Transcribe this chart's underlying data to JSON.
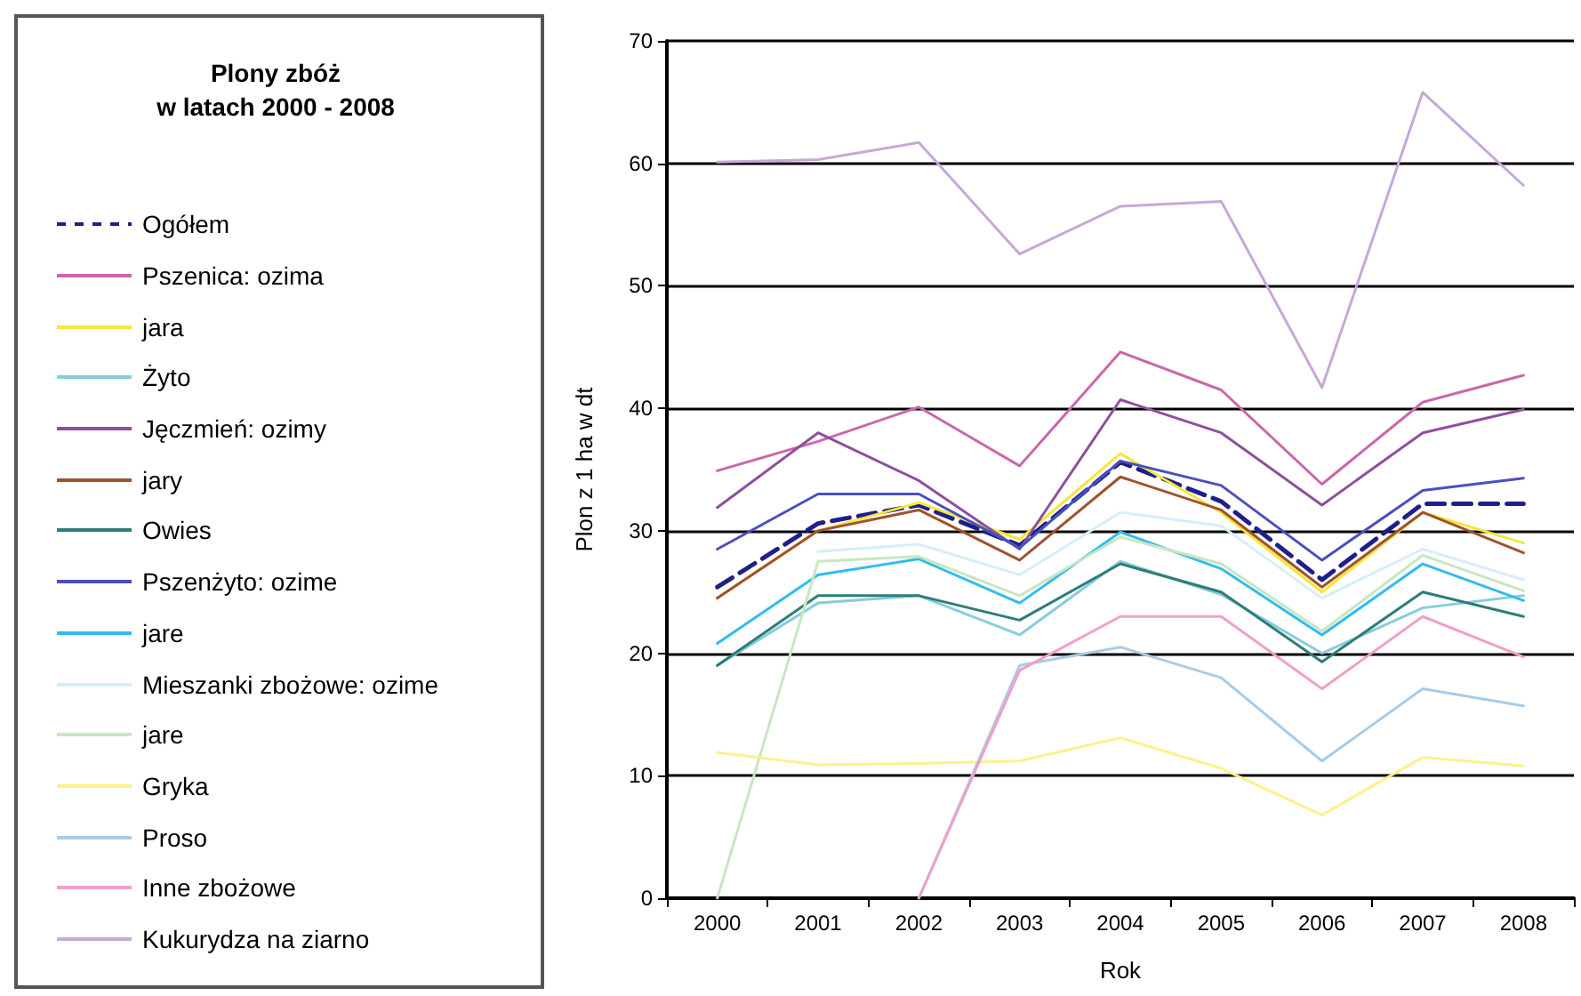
{
  "chart_data": {
    "type": "line",
    "title": "Plony zbóż\nw latach 2000  - 2008",
    "xlabel": "Rok",
    "ylabel": "Plon z 1 ha w dt",
    "categories": [
      "2000",
      "2001",
      "2002",
      "2003",
      "2004",
      "2005",
      "2006",
      "2007",
      "2008"
    ],
    "ylim": [
      0,
      70
    ],
    "yticks": [
      0,
      10,
      20,
      30,
      40,
      50,
      60,
      70
    ],
    "grid": "y",
    "legend": "left",
    "marker": "none",
    "line_style": "solid",
    "series": [
      {
        "name": "Ogółem",
        "color": "#1f1f8a",
        "line_style": "dashed",
        "values": [
          25.4,
          30.6,
          32.1,
          28.8,
          35.6,
          32.4,
          26.0,
          32.2,
          32.2
        ]
      },
      {
        "name": "Pszenica: ozima",
        "color": "#cc66aa",
        "values": [
          34.9,
          37.3,
          40.1,
          35.3,
          44.6,
          41.5,
          33.8,
          40.5,
          42.7
        ]
      },
      {
        "name": "jara",
        "color": "#f5e63a",
        "values": [
          24.5,
          30.0,
          32.3,
          29.3,
          36.3,
          31.5,
          25.0,
          31.5,
          29.0
        ]
      },
      {
        "name": "Żyto",
        "color": "#88ccdd",
        "values": [
          19.0,
          24.1,
          24.7,
          21.5,
          27.5,
          24.8,
          20.0,
          23.7,
          24.7
        ]
      },
      {
        "name": "Jęczmień: ozimy",
        "color": "#8e4f9e",
        "values": [
          31.9,
          38.0,
          34.1,
          28.5,
          40.7,
          38.0,
          32.1,
          38.0,
          39.9
        ]
      },
      {
        "name": "jary",
        "color": "#a0522d",
        "values": [
          24.5,
          30.0,
          31.7,
          27.6,
          34.4,
          31.7,
          25.4,
          31.5,
          28.2
        ]
      },
      {
        "name": "Owies",
        "color": "#2e7d7a",
        "values": [
          19.0,
          24.7,
          24.7,
          22.7,
          27.3,
          25.0,
          19.3,
          25.0,
          23.0
        ]
      },
      {
        "name": "Pszenżyto: ozime",
        "color": "#4a4fbf",
        "values": [
          28.5,
          33.0,
          33.0,
          28.6,
          35.7,
          33.7,
          27.6,
          33.3,
          34.3
        ]
      },
      {
        "name": "jare",
        "color": "#33bbee",
        "values": [
          20.8,
          26.4,
          27.7,
          24.1,
          29.9,
          26.9,
          21.5,
          27.3,
          24.3
        ]
      },
      {
        "name": "Mieszanki zbożowe: ozime",
        "color": "#d6eef8",
        "values": [
          null,
          28.3,
          28.9,
          26.4,
          31.5,
          30.4,
          24.5,
          28.5,
          26.0
        ]
      },
      {
        "name": "jare",
        "color": "#c8e6c0",
        "values": [
          0,
          27.5,
          27.9,
          24.7,
          29.5,
          27.3,
          21.8,
          28.0,
          25.1
        ]
      },
      {
        "name": "Gryka",
        "color": "#fff08a",
        "values": [
          11.9,
          10.9,
          11.0,
          11.2,
          13.1,
          10.6,
          6.8,
          11.5,
          10.8
        ]
      },
      {
        "name": "Proso",
        "color": "#a8cce8",
        "values": [
          null,
          null,
          0,
          19.0,
          20.5,
          18.0,
          11.2,
          17.1,
          15.7
        ]
      },
      {
        "name": "Inne zbożowe",
        "color": "#f0a0c8",
        "values": [
          null,
          null,
          0,
          18.6,
          23.0,
          23.0,
          17.1,
          23.0,
          19.7
        ]
      },
      {
        "name": "Kukurydza na ziarno",
        "color": "#c8a8d8",
        "values": [
          60.1,
          60.3,
          61.7,
          52.6,
          56.5,
          56.9,
          41.7,
          65.8,
          58.2
        ]
      }
    ]
  }
}
